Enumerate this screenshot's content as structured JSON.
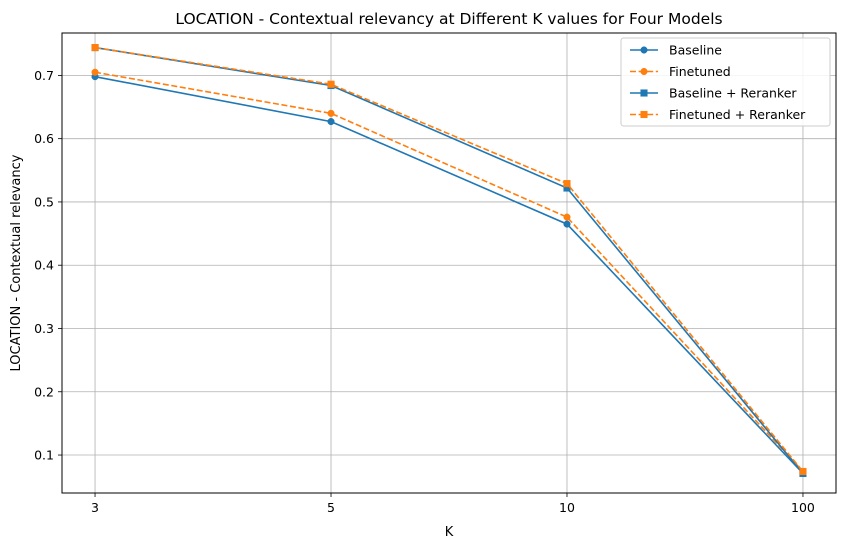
{
  "chart_data": {
    "type": "line",
    "title": "LOCATION - Contextual relevancy at Different K values for Four Models",
    "xlabel": "K",
    "ylabel": "LOCATION - Contextual relevancy",
    "categories": [
      "3",
      "5",
      "10",
      "100"
    ],
    "ylim": [
      0.04,
      0.767
    ],
    "yticks": [
      "0.1",
      "0.2",
      "0.3",
      "0.4",
      "0.5",
      "0.6",
      "0.7"
    ],
    "grid": true,
    "legend_position": "top-right",
    "series": [
      {
        "name": "Baseline",
        "values": [
          0.698,
          0.627,
          0.465,
          0.071
        ],
        "color": "#1f77b4",
        "linestyle": "solid",
        "marker": "circle"
      },
      {
        "name": "Finetuned",
        "values": [
          0.705,
          0.64,
          0.476,
          0.074
        ],
        "color": "#ff7f0e",
        "linestyle": "dashed",
        "marker": "circle"
      },
      {
        "name": "Baseline + Reranker",
        "values": [
          0.744,
          0.684,
          0.522,
          0.071
        ],
        "color": "#1f77b4",
        "linestyle": "solid",
        "marker": "square"
      },
      {
        "name": "Finetuned + Reranker",
        "values": [
          0.744,
          0.686,
          0.529,
          0.074
        ],
        "color": "#ff7f0e",
        "linestyle": "dashed",
        "marker": "square"
      }
    ]
  }
}
